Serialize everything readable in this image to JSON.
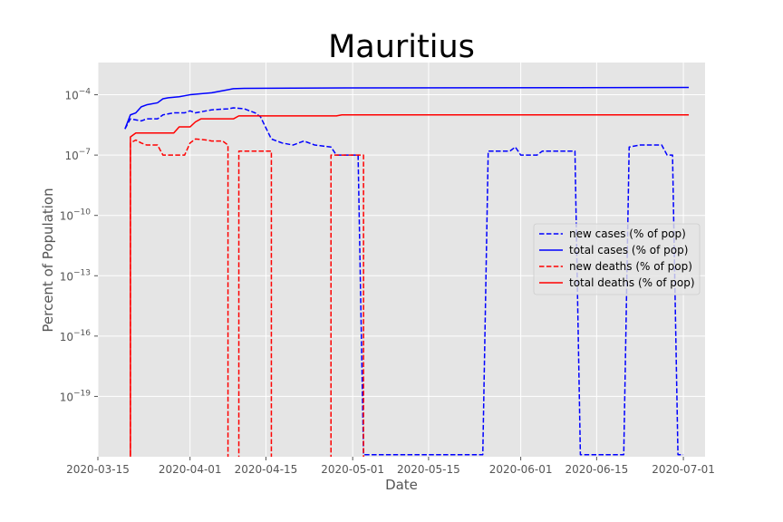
{
  "chart_data": {
    "type": "line",
    "title": "Mauritius",
    "xlabel": "Date",
    "ylabel": "Percent of Population",
    "yscale": "log",
    "x_range": [
      "2020-03-15",
      "2020-07-05"
    ],
    "ylim": [
      1e-22,
      0.004
    ],
    "grid": true,
    "legend_position": "center-right",
    "x_ticks": [
      {
        "date": "2020-03-15",
        "label": "2020-03-15"
      },
      {
        "date": "2020-04-01",
        "label": "2020-04-01"
      },
      {
        "date": "2020-04-15",
        "label": "2020-04-15"
      },
      {
        "date": "2020-05-01",
        "label": "2020-05-01"
      },
      {
        "date": "2020-05-15",
        "label": "2020-05-15"
      },
      {
        "date": "2020-06-01",
        "label": "2020-06-01"
      },
      {
        "date": "2020-06-15",
        "label": "2020-06-15"
      },
      {
        "date": "2020-07-01",
        "label": "2020-07-01"
      }
    ],
    "y_ticks": [
      {
        "exp": -4,
        "base": "10",
        "power": "−4"
      },
      {
        "exp": -7,
        "base": "10",
        "power": "−7"
      },
      {
        "exp": -10,
        "base": "10",
        "power": "−10"
      },
      {
        "exp": -13,
        "base": "10",
        "power": "−13"
      },
      {
        "exp": -16,
        "base": "10",
        "power": "−16"
      },
      {
        "exp": -19,
        "base": "10",
        "power": "−19"
      }
    ],
    "series": [
      {
        "name": "new cases (% of pop)",
        "color": "#0000ff",
        "dash": "dashed",
        "points": [
          [
            "2020-03-20",
            -5.7
          ],
          [
            "2020-03-21",
            -5.2
          ],
          [
            "2020-03-23",
            -5.3
          ],
          [
            "2020-03-24",
            -5.2
          ],
          [
            "2020-03-26",
            -5.2
          ],
          [
            "2020-03-27",
            -5.0
          ],
          [
            "2020-03-29",
            -4.9
          ],
          [
            "2020-03-31",
            -4.9
          ],
          [
            "2020-04-01",
            -4.8
          ],
          [
            "2020-04-02",
            -4.9
          ],
          [
            "2020-04-04",
            -4.8
          ],
          [
            "2020-04-05",
            -4.75
          ],
          [
            "2020-04-08",
            -4.7
          ],
          [
            "2020-04-09",
            -4.65
          ],
          [
            "2020-04-11",
            -4.7
          ],
          [
            "2020-04-13",
            -4.9
          ],
          [
            "2020-04-14",
            -5.1
          ],
          [
            "2020-04-16",
            -6.2
          ],
          [
            "2020-04-18",
            -6.4
          ],
          [
            "2020-04-20",
            -6.5
          ],
          [
            "2020-04-22",
            -6.3
          ],
          [
            "2020-04-24",
            -6.5
          ],
          [
            "2020-04-27",
            -6.6
          ],
          [
            "2020-04-28",
            -7.0
          ],
          [
            "2020-05-02",
            -7.0
          ],
          [
            "2020-05-03",
            -21.9
          ],
          [
            "2020-05-25",
            -21.9
          ],
          [
            "2020-05-26",
            -6.8
          ],
          [
            "2020-05-30",
            -6.8
          ],
          [
            "2020-05-31",
            -6.6
          ],
          [
            "2020-06-01",
            -7.0
          ],
          [
            "2020-06-04",
            -7.0
          ],
          [
            "2020-06-05",
            -6.8
          ],
          [
            "2020-06-11",
            -6.8
          ],
          [
            "2020-06-12",
            -21.9
          ],
          [
            "2020-06-20",
            -21.9
          ],
          [
            "2020-06-21",
            -6.6
          ],
          [
            "2020-06-23",
            -6.5
          ],
          [
            "2020-06-27",
            -6.5
          ],
          [
            "2020-06-28",
            -7.0
          ],
          [
            "2020-06-29",
            -7.0
          ],
          [
            "2020-06-30",
            -21.9
          ],
          [
            "2020-07-01",
            -21.9
          ]
        ]
      },
      {
        "name": "total cases (% of pop)",
        "color": "#0000ff",
        "dash": "solid",
        "points": [
          [
            "2020-03-20",
            -5.7
          ],
          [
            "2020-03-21",
            -5.0
          ],
          [
            "2020-03-22",
            -4.9
          ],
          [
            "2020-03-23",
            -4.6
          ],
          [
            "2020-03-24",
            -4.5
          ],
          [
            "2020-03-26",
            -4.4
          ],
          [
            "2020-03-27",
            -4.2
          ],
          [
            "2020-03-28",
            -4.15
          ],
          [
            "2020-03-30",
            -4.1
          ],
          [
            "2020-04-01",
            -4.0
          ],
          [
            "2020-04-05",
            -3.9
          ],
          [
            "2020-04-07",
            -3.8
          ],
          [
            "2020-04-09",
            -3.7
          ],
          [
            "2020-04-11",
            -3.68
          ],
          [
            "2020-04-20",
            -3.67
          ],
          [
            "2020-05-01",
            -3.66
          ],
          [
            "2020-07-02",
            -3.64
          ]
        ]
      },
      {
        "name": "new deaths (% of pop)",
        "color": "#ff0000",
        "dash": "dashed",
        "points": [
          [
            "2020-03-21",
            -23.0
          ],
          [
            "2020-03-21",
            -6.4
          ],
          [
            "2020-03-22",
            -6.25
          ],
          [
            "2020-03-23",
            -6.4
          ],
          [
            "2020-03-24",
            -6.5
          ],
          [
            "2020-03-26",
            -6.5
          ],
          [
            "2020-03-27",
            -7.0
          ],
          [
            "2020-03-31",
            -7.0
          ],
          [
            "2020-04-01",
            -6.4
          ],
          [
            "2020-04-02",
            -6.2
          ],
          [
            "2020-04-04",
            -6.25
          ],
          [
            "2020-04-05",
            -6.3
          ],
          [
            "2020-04-07",
            -6.3
          ],
          [
            "2020-04-08",
            -6.5
          ],
          [
            "2020-04-08",
            -23.0
          ],
          [
            "2020-04-10",
            -23.0
          ],
          [
            "2020-04-10",
            -6.8
          ],
          [
            "2020-04-16",
            -6.8
          ],
          [
            "2020-04-16",
            -23.0
          ],
          [
            "2020-04-27",
            -23.0
          ],
          [
            "2020-04-27",
            -7.0
          ],
          [
            "2020-05-03",
            -7.0
          ],
          [
            "2020-05-03",
            -23.0
          ]
        ]
      },
      {
        "name": "total deaths (% of pop)",
        "color": "#ff0000",
        "dash": "solid",
        "points": [
          [
            "2020-03-21",
            -23.0
          ],
          [
            "2020-03-21",
            -6.1
          ],
          [
            "2020-03-22",
            -5.9
          ],
          [
            "2020-03-29",
            -5.9
          ],
          [
            "2020-03-30",
            -5.6
          ],
          [
            "2020-04-01",
            -5.6
          ],
          [
            "2020-04-02",
            -5.35
          ],
          [
            "2020-04-03",
            -5.2
          ],
          [
            "2020-04-09",
            -5.2
          ],
          [
            "2020-04-10",
            -5.05
          ],
          [
            "2020-04-12",
            -5.05
          ],
          [
            "2020-04-28",
            -5.05
          ],
          [
            "2020-04-29",
            -5.0
          ],
          [
            "2020-07-02",
            -5.0
          ]
        ]
      }
    ]
  }
}
